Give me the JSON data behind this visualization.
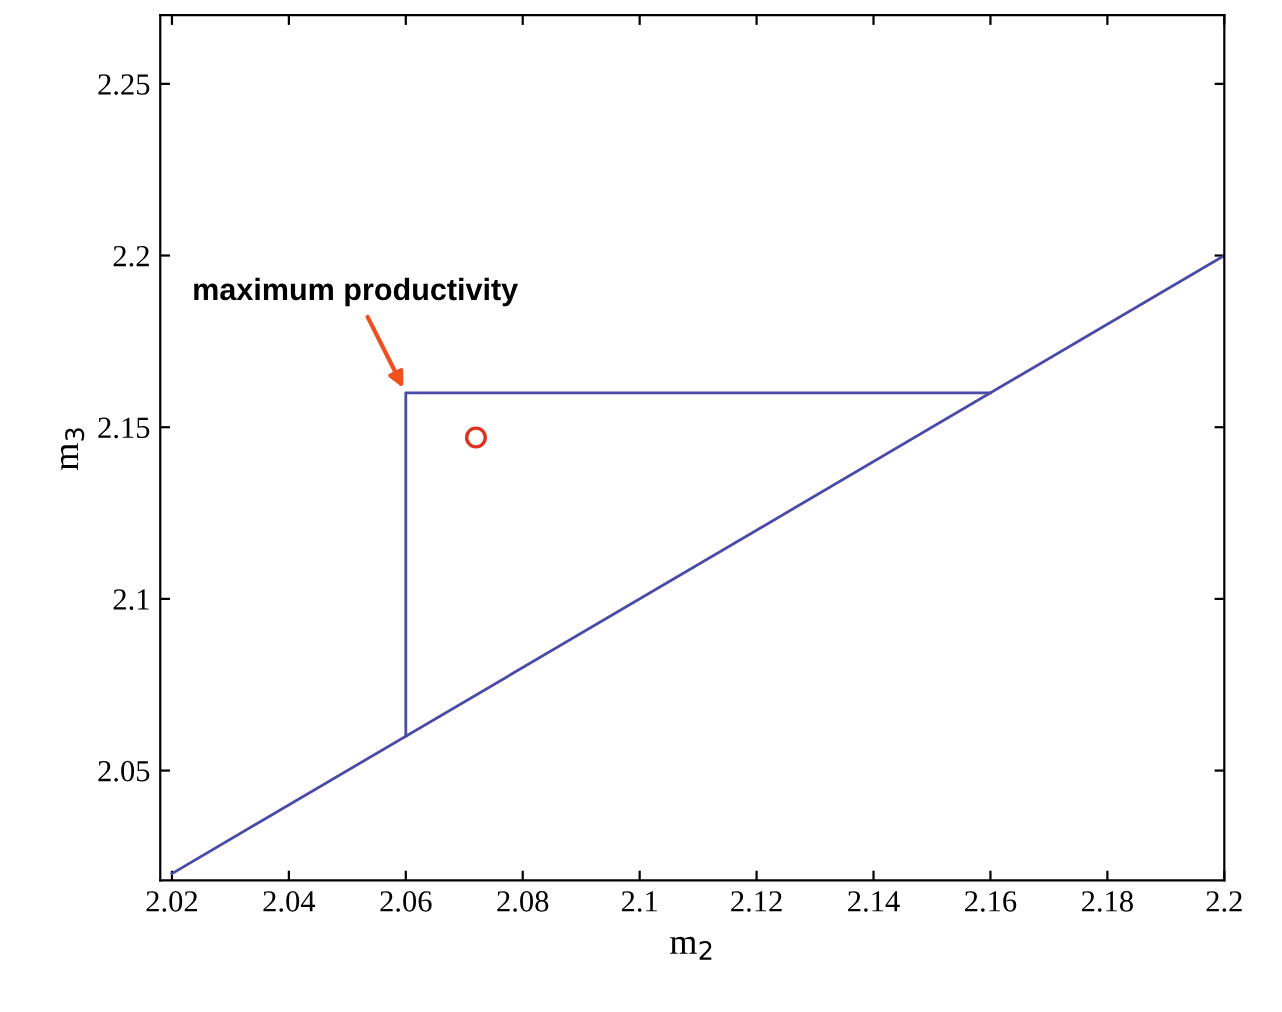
{
  "chart_data": {
    "type": "line",
    "xlabel": "m$_{2}$",
    "ylabel": "m$_{3}$",
    "series": [
      {
        "color": "#4a4aa8",
        "x": [
          2.02,
          2.2
        ],
        "values": [
          2.02,
          2.2
        ]
      },
      {
        "color": "#4a4aa8",
        "x": [
          2.06,
          2.06,
          2.16
        ],
        "values": [
          2.06,
          2.16,
          2.16
        ]
      },
      {
        "type": "scatter",
        "color": "#e03020",
        "marker": "circle",
        "x": [
          2.072
        ],
        "values": [
          2.147
        ]
      }
    ],
    "annotations": [
      {
        "text": "maximum productivity",
        "x": 2.06,
        "y": 2.16
      }
    ],
    "xlim": [
      2.018,
      2.2
    ],
    "ylim": [
      2.018,
      2.27
    ],
    "xticks": [
      2.02,
      2.04,
      2.06,
      2.08,
      2.1,
      2.12,
      2.14,
      2.16,
      2.18,
      2.2
    ],
    "yticks": [
      2.05,
      2.1,
      2.15,
      2.2,
      2.25
    ],
    "grid": false,
    "legend": false
  }
}
